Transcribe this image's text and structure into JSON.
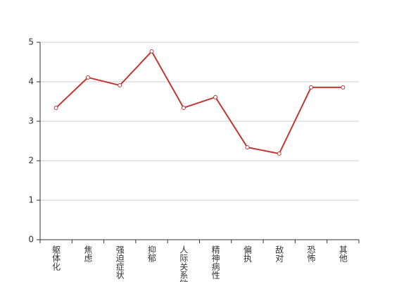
{
  "chart_data": {
    "type": "line",
    "categories": [
      "躯体化",
      "焦虑",
      "强迫症状",
      "抑郁",
      "人际关系敏感",
      "精神病性",
      "偏执",
      "敌对",
      "恐怖",
      "其他"
    ],
    "series": [
      {
        "color": "#c23531",
        "values": [
          3.34,
          4.11,
          3.91,
          4.77,
          3.34,
          3.61,
          2.34,
          2.18,
          3.86,
          3.86
        ]
      }
    ],
    "ylim": [
      0,
      5
    ],
    "yticks": [
      0,
      1,
      2,
      3,
      4,
      5
    ],
    "grid": true
  }
}
